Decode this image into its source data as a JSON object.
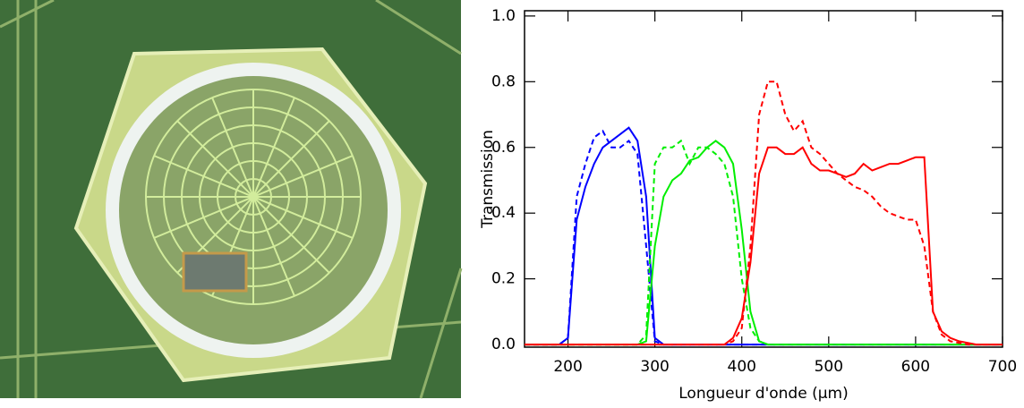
{
  "chart_data": {
    "type": "line",
    "xlabel": "Longueur d'onde (μm)",
    "ylabel": "Transmission",
    "x": [
      150,
      160,
      170,
      180,
      190,
      200,
      210,
      220,
      230,
      240,
      250,
      260,
      270,
      280,
      290,
      300,
      310,
      320,
      330,
      340,
      350,
      360,
      370,
      380,
      390,
      400,
      410,
      420,
      430,
      440,
      450,
      460,
      470,
      480,
      490,
      500,
      510,
      520,
      530,
      540,
      550,
      560,
      570,
      580,
      590,
      600,
      610,
      620,
      630,
      640,
      650,
      660,
      670,
      680,
      690,
      700
    ],
    "xlim": [
      150,
      700
    ],
    "xticks": [
      200,
      300,
      400,
      500,
      600,
      700
    ],
    "ylim": [
      -0.008,
      1.016
    ],
    "yticks": [
      {
        "value": 0,
        "label": "0.0"
      },
      0.2,
      0.4,
      0.6,
      0.8,
      {
        "value": 1,
        "label": "1.0"
      }
    ],
    "series": [
      {
        "color": "#0000ff",
        "linestyle": "solid",
        "values": [
          0,
          0,
          0,
          0,
          0,
          0.02,
          0.38,
          0.48,
          0.55,
          0.6,
          0.62,
          0.64,
          0.66,
          0.62,
          0.45,
          0.02,
          0,
          0,
          0,
          0,
          0,
          0,
          0,
          0,
          0,
          0,
          0,
          0,
          0,
          0,
          0,
          0,
          0,
          0,
          0,
          0,
          0,
          0,
          0,
          0,
          0,
          0,
          0,
          0,
          0,
          0,
          0,
          0,
          0,
          0,
          0,
          0,
          0,
          0,
          0,
          0
        ]
      },
      {
        "color": "#0000ff",
        "linestyle": "dashed",
        "values": [
          0,
          0,
          0,
          0,
          0,
          0.02,
          0.45,
          0.55,
          0.63,
          0.65,
          0.6,
          0.6,
          0.62,
          0.58,
          0.3,
          0.01,
          0,
          0,
          0,
          0,
          0,
          0,
          0,
          0,
          0,
          0,
          0,
          0,
          0,
          0,
          0,
          0,
          0,
          0,
          0,
          0,
          0,
          0,
          0,
          0,
          0,
          0,
          0,
          0,
          0,
          0,
          0,
          0,
          0,
          0,
          0,
          0,
          0,
          0,
          0,
          0
        ]
      },
      {
        "color": "#00ee00",
        "linestyle": "solid",
        "values": [
          0,
          0,
          0,
          0,
          0,
          0,
          0,
          0,
          0,
          0,
          0,
          0,
          0,
          0,
          0.01,
          0.3,
          0.45,
          0.5,
          0.52,
          0.56,
          0.57,
          0.6,
          0.62,
          0.6,
          0.55,
          0.35,
          0.1,
          0.01,
          0,
          0,
          0,
          0,
          0,
          0,
          0,
          0,
          0,
          0,
          0,
          0,
          0,
          0,
          0,
          0,
          0,
          0,
          0,
          0,
          0,
          0,
          0,
          0,
          0,
          0,
          0,
          0
        ]
      },
      {
        "color": "#00ee00",
        "linestyle": "dashed",
        "values": [
          0,
          0,
          0,
          0,
          0,
          0,
          0,
          0,
          0,
          0,
          0,
          0,
          0,
          0,
          0.03,
          0.55,
          0.6,
          0.6,
          0.62,
          0.55,
          0.6,
          0.6,
          0.58,
          0.55,
          0.45,
          0.2,
          0.05,
          0.01,
          0,
          0,
          0,
          0,
          0,
          0,
          0,
          0,
          0,
          0,
          0,
          0,
          0,
          0,
          0,
          0,
          0,
          0,
          0,
          0,
          0,
          0,
          0,
          0,
          0,
          0,
          0,
          0
        ]
      },
      {
        "color": "#ff0000",
        "linestyle": "solid",
        "values": [
          0,
          0,
          0,
          0,
          0,
          0,
          0,
          0,
          0,
          0,
          0,
          0,
          0,
          0,
          0,
          0,
          0,
          0,
          0,
          0,
          0,
          0,
          0,
          0,
          0.02,
          0.08,
          0.25,
          0.52,
          0.6,
          0.6,
          0.58,
          0.58,
          0.6,
          0.55,
          0.53,
          0.53,
          0.52,
          0.51,
          0.52,
          0.55,
          0.53,
          0.54,
          0.55,
          0.55,
          0.56,
          0.57,
          0.57,
          0.1,
          0.04,
          0.02,
          0.01,
          0.005,
          0,
          0,
          0,
          0
        ]
      },
      {
        "color": "#ff0000",
        "linestyle": "dashed",
        "values": [
          0,
          0,
          0,
          0,
          0,
          0,
          0,
          0,
          0,
          0,
          0,
          0,
          0,
          0,
          0,
          0,
          0,
          0,
          0,
          0,
          0,
          0,
          0,
          0,
          0.01,
          0.05,
          0.3,
          0.7,
          0.8,
          0.8,
          0.7,
          0.65,
          0.68,
          0.6,
          0.58,
          0.55,
          0.52,
          0.5,
          0.48,
          0.47,
          0.45,
          0.42,
          0.4,
          0.39,
          0.38,
          0.38,
          0.3,
          0.1,
          0.03,
          0.01,
          0.005,
          0,
          0,
          0,
          0,
          0
        ]
      }
    ]
  }
}
